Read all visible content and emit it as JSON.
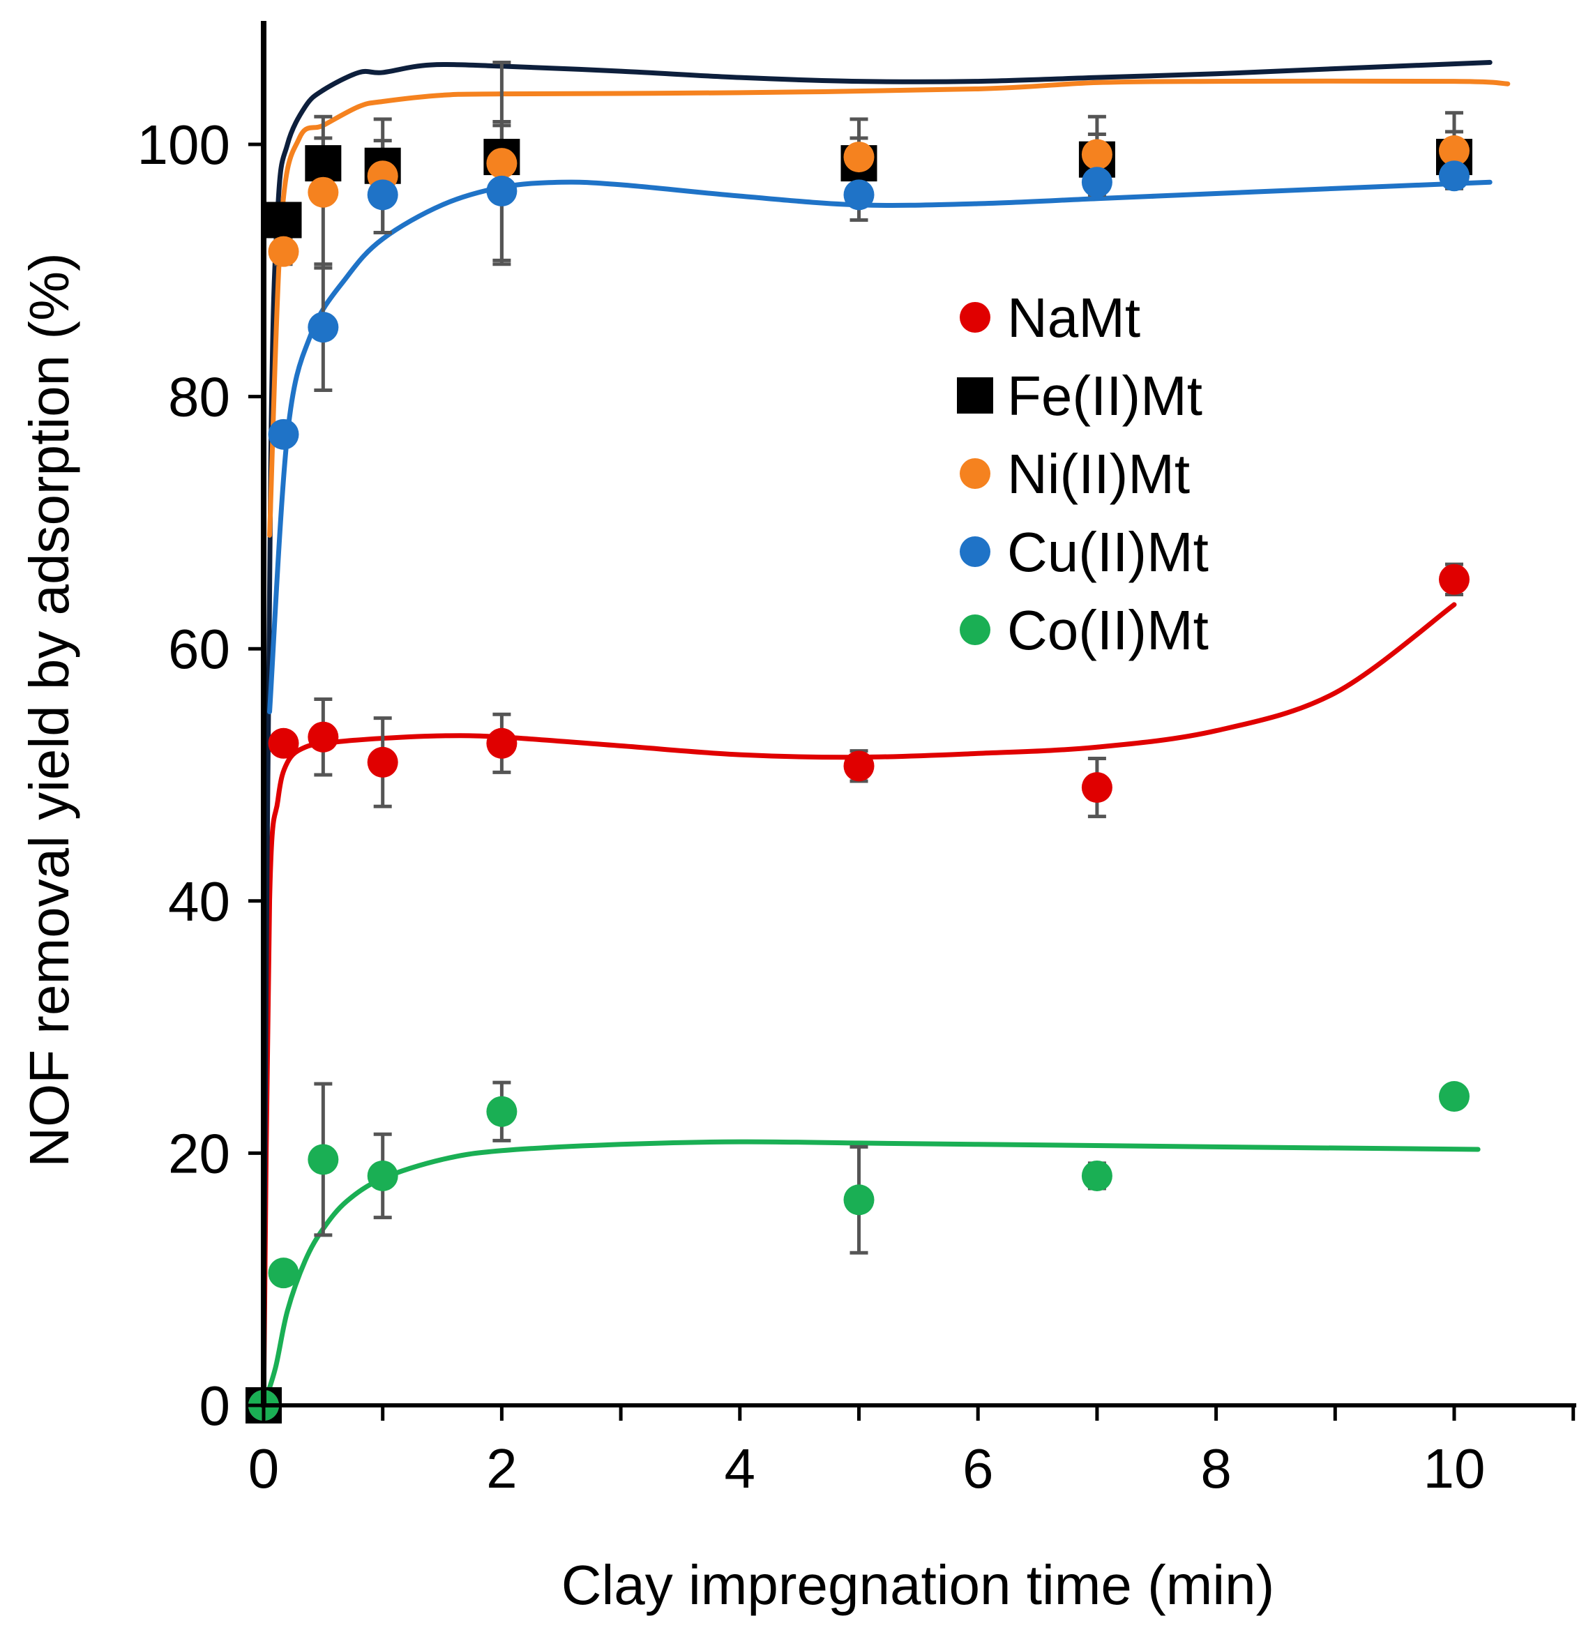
{
  "chart_data": {
    "type": "scatter",
    "title": "",
    "xlabel": "Clay impregnation time (min)",
    "ylabel": "NOF removal yield by adsorption (%)",
    "xlim": [
      0,
      11
    ],
    "ylim": [
      0,
      110
    ],
    "xticks": [
      0,
      2,
      4,
      6,
      8,
      10
    ],
    "yticks": [
      0,
      20,
      40,
      60,
      80,
      100
    ],
    "grid": false,
    "legend_position": "center-right",
    "x": [
      0,
      0.167,
      0.5,
      1,
      2,
      5,
      7,
      10
    ],
    "series": [
      {
        "name": "NaMt",
        "marker": "circle",
        "color": "#e00000",
        "values": [
          0,
          52.5,
          53,
          51,
          52.5,
          50.7,
          49,
          65.5
        ],
        "errors": [
          0,
          0,
          3,
          3.5,
          2.3,
          1.2,
          2.3,
          1.2
        ],
        "fit": [
          [
            0,
            0
          ],
          [
            0.05,
            40
          ],
          [
            0.12,
            48
          ],
          [
            0.2,
            51
          ],
          [
            0.35,
            52.2
          ],
          [
            0.6,
            52.6
          ],
          [
            1,
            52.9
          ],
          [
            1.5,
            53.1
          ],
          [
            2,
            53
          ],
          [
            3,
            52.3
          ],
          [
            4,
            51.6
          ],
          [
            5,
            51.4
          ],
          [
            6,
            51.7
          ],
          [
            7,
            52.2
          ],
          [
            8,
            53.5
          ],
          [
            9,
            56.5
          ],
          [
            10,
            63.5
          ]
        ]
      },
      {
        "name": "Fe(II)Mt",
        "marker": "square",
        "color": "#000000",
        "values": [
          0,
          94,
          98.5,
          98.3,
          99,
          98.5,
          98.8,
          99
        ],
        "errors": [
          0,
          0,
          2,
          2,
          2.5,
          2,
          2,
          2
        ],
        "fit": [
          [
            0,
            7
          ],
          [
            0.06,
            75
          ],
          [
            0.12,
            95
          ],
          [
            0.2,
            100
          ],
          [
            0.35,
            103
          ],
          [
            0.5,
            104.3
          ],
          [
            0.8,
            105.7
          ],
          [
            1,
            105.7
          ],
          [
            1.4,
            106.3
          ],
          [
            2,
            106.2
          ],
          [
            3,
            105.8
          ],
          [
            4,
            105.3
          ],
          [
            5,
            105
          ],
          [
            6,
            105
          ],
          [
            7,
            105.3
          ],
          [
            8,
            105.6
          ],
          [
            9,
            106
          ],
          [
            10.3,
            106.5
          ]
        ],
        "fit_color": "#0d1f3c"
      },
      {
        "name": "Ni(II)Mt",
        "marker": "circle",
        "color": "#f5821f",
        "values": [
          0,
          91.5,
          96.2,
          97.5,
          98.5,
          99,
          99.2,
          99.5
        ],
        "errors": [
          0,
          1,
          6,
          4.5,
          8,
          3,
          3,
          3
        ],
        "fit": [
          [
            0.05,
            69
          ],
          [
            0.15,
            94
          ],
          [
            0.3,
            100.5
          ],
          [
            0.5,
            101.5
          ],
          [
            0.8,
            103
          ],
          [
            1,
            103.4
          ],
          [
            1.5,
            103.9
          ],
          [
            2,
            104
          ],
          [
            4,
            104.1
          ],
          [
            6,
            104.4
          ],
          [
            7,
            104.9
          ],
          [
            8,
            105
          ],
          [
            10,
            105
          ],
          [
            10.45,
            104.8
          ]
        ]
      },
      {
        "name": "Cu(II)Mt",
        "marker": "circle",
        "color": "#1f73c7",
        "values": [
          0,
          77,
          85.5,
          96,
          96.3,
          96,
          97,
          97.5
        ],
        "errors": [
          0,
          0,
          5,
          3,
          5.5,
          2,
          1,
          1
        ],
        "fit": [
          [
            0.05,
            55
          ],
          [
            0.2,
            77
          ],
          [
            0.4,
            85
          ],
          [
            0.7,
            89.5
          ],
          [
            1,
            92.5
          ],
          [
            1.5,
            95.2
          ],
          [
            2,
            96.6
          ],
          [
            2.5,
            97
          ],
          [
            3,
            96.8
          ],
          [
            4,
            95.9
          ],
          [
            5,
            95.2
          ],
          [
            6,
            95.3
          ],
          [
            7,
            95.7
          ],
          [
            8,
            96.1
          ],
          [
            9,
            96.5
          ],
          [
            10.3,
            97
          ]
        ]
      },
      {
        "name": "Co(II)Mt",
        "marker": "circle",
        "color": "#1aaf54",
        "values": [
          0,
          10.5,
          19.5,
          18.2,
          23.3,
          16.3,
          18.2,
          24.5
        ],
        "errors": [
          0,
          0,
          6,
          3.3,
          2.3,
          4.2,
          1,
          0
        ],
        "fit": [
          [
            0,
            0
          ],
          [
            0.1,
            3
          ],
          [
            0.2,
            7.5
          ],
          [
            0.35,
            11.5
          ],
          [
            0.5,
            14
          ],
          [
            0.7,
            16.2
          ],
          [
            1,
            18
          ],
          [
            1.5,
            19.5
          ],
          [
            2,
            20.2
          ],
          [
            3,
            20.7
          ],
          [
            4,
            20.9
          ],
          [
            5,
            20.8
          ],
          [
            6,
            20.7
          ],
          [
            8,
            20.5
          ],
          [
            10.2,
            20.3
          ]
        ]
      }
    ]
  }
}
